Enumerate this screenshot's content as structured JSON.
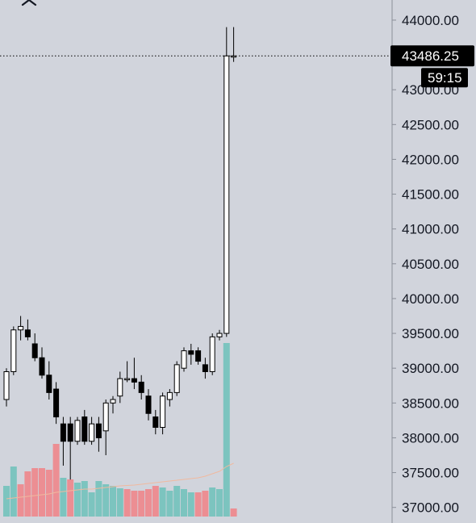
{
  "ui": {
    "close_icon": "close-icon",
    "background_color": "#d1d4dc",
    "axis_color": "#8b8f99",
    "text_color": "#131722",
    "up_color": "#ffffff",
    "down_color": "#000000",
    "wick_color": "#000000",
    "volume_up_color": "#7cc4bf",
    "volume_down_color": "#ec8e93",
    "volume_ma_color": "#f0b99f"
  },
  "price_badge": {
    "value": "43486.25",
    "countdown": "59:15",
    "color": "#000000"
  },
  "chart_data": {
    "type": "candlestick",
    "title": "",
    "xlabel": "",
    "ylabel": "",
    "ylim": [
      36950,
      44150
    ],
    "grid": false,
    "y_ticks": [
      {
        "value": 44000,
        "label": "44000.00"
      },
      {
        "value": 43500,
        "label": "43500.00"
      },
      {
        "value": 43000,
        "label": "43000.00"
      },
      {
        "value": 42500,
        "label": "42500.00"
      },
      {
        "value": 42000,
        "label": "42000.00"
      },
      {
        "value": 41500,
        "label": "41500.00"
      },
      {
        "value": 41000,
        "label": "41000.00"
      },
      {
        "value": 40500,
        "label": "40500.00"
      },
      {
        "value": 40000,
        "label": "40000.00"
      },
      {
        "value": 39500,
        "label": "39500.00"
      },
      {
        "value": 39000,
        "label": "39000.00"
      },
      {
        "value": 38500,
        "label": "38500.00"
      },
      {
        "value": 38000,
        "label": "38000.00"
      },
      {
        "value": 37500,
        "label": "37500.00"
      },
      {
        "value": 37000,
        "label": "37000.00"
      }
    ],
    "last_price": 43486.25,
    "candles": [
      {
        "o": 38550,
        "h": 39000,
        "l": 38450,
        "c": 38950
      },
      {
        "o": 38950,
        "h": 39600,
        "l": 38900,
        "c": 39550
      },
      {
        "o": 39550,
        "h": 39750,
        "l": 39400,
        "c": 39600
      },
      {
        "o": 39550,
        "h": 39700,
        "l": 39400,
        "c": 39450
      },
      {
        "o": 39350,
        "h": 39500,
        "l": 39100,
        "c": 39150
      },
      {
        "o": 39150,
        "h": 39300,
        "l": 38850,
        "c": 38900
      },
      {
        "o": 38900,
        "h": 39100,
        "l": 38550,
        "c": 38650
      },
      {
        "o": 38700,
        "h": 38800,
        "l": 38200,
        "c": 38300
      },
      {
        "o": 38200,
        "h": 38300,
        "l": 37600,
        "c": 37950
      },
      {
        "o": 38200,
        "h": 38300,
        "l": 37400,
        "c": 37950
      },
      {
        "o": 37950,
        "h": 38300,
        "l": 37900,
        "c": 38250
      },
      {
        "o": 38300,
        "h": 38400,
        "l": 37900,
        "c": 37950
      },
      {
        "o": 37950,
        "h": 38300,
        "l": 37900,
        "c": 38200
      },
      {
        "o": 38200,
        "h": 38300,
        "l": 37800,
        "c": 38000
      },
      {
        "o": 38100,
        "h": 38550,
        "l": 37750,
        "c": 38500
      },
      {
        "o": 38500,
        "h": 38600,
        "l": 38350,
        "c": 38550
      },
      {
        "o": 38600,
        "h": 38950,
        "l": 38500,
        "c": 38850
      },
      {
        "o": 38850,
        "h": 39100,
        "l": 38800,
        "c": 38850
      },
      {
        "o": 38850,
        "h": 39150,
        "l": 38700,
        "c": 38800
      },
      {
        "o": 38800,
        "h": 38900,
        "l": 38550,
        "c": 38650
      },
      {
        "o": 38600,
        "h": 38700,
        "l": 38250,
        "c": 38350
      },
      {
        "o": 38300,
        "h": 38400,
        "l": 38050,
        "c": 38150
      },
      {
        "o": 38150,
        "h": 38650,
        "l": 38050,
        "c": 38600
      },
      {
        "o": 38550,
        "h": 38700,
        "l": 38450,
        "c": 38650
      },
      {
        "o": 38650,
        "h": 39100,
        "l": 38600,
        "c": 39050
      },
      {
        "o": 39000,
        "h": 39300,
        "l": 38950,
        "c": 39250
      },
      {
        "o": 39250,
        "h": 39350,
        "l": 39050,
        "c": 39200
      },
      {
        "o": 39250,
        "h": 39300,
        "l": 39050,
        "c": 39100
      },
      {
        "o": 39050,
        "h": 39150,
        "l": 38850,
        "c": 38950
      },
      {
        "o": 38950,
        "h": 39500,
        "l": 38900,
        "c": 39450
      },
      {
        "o": 39450,
        "h": 39550,
        "l": 39400,
        "c": 39500
      },
      {
        "o": 39500,
        "h": 43900,
        "l": 39450,
        "c": 43486.25
      },
      {
        "o": 43486.25,
        "h": 43900,
        "l": 43400,
        "c": 43486.25
      }
    ],
    "volume": [
      {
        "v": 0.38,
        "up": true
      },
      {
        "v": 0.62,
        "up": true
      },
      {
        "v": 0.4,
        "up": false
      },
      {
        "v": 0.56,
        "up": false
      },
      {
        "v": 0.6,
        "up": false
      },
      {
        "v": 0.6,
        "up": false
      },
      {
        "v": 0.58,
        "up": false
      },
      {
        "v": 0.9,
        "up": false
      },
      {
        "v": 0.48,
        "up": true
      },
      {
        "v": 0.46,
        "up": false
      },
      {
        "v": 0.42,
        "up": true
      },
      {
        "v": 0.44,
        "up": true
      },
      {
        "v": 0.3,
        "up": true
      },
      {
        "v": 0.44,
        "up": true
      },
      {
        "v": 0.4,
        "up": true
      },
      {
        "v": 0.38,
        "up": true
      },
      {
        "v": 0.35,
        "up": true
      },
      {
        "v": 0.34,
        "up": false
      },
      {
        "v": 0.32,
        "up": false
      },
      {
        "v": 0.32,
        "up": false
      },
      {
        "v": 0.34,
        "up": false
      },
      {
        "v": 0.38,
        "up": false
      },
      {
        "v": 0.36,
        "up": true
      },
      {
        "v": 0.32,
        "up": true
      },
      {
        "v": 0.38,
        "up": true
      },
      {
        "v": 0.34,
        "up": true
      },
      {
        "v": 0.3,
        "up": true
      },
      {
        "v": 0.3,
        "up": false
      },
      {
        "v": 0.32,
        "up": false
      },
      {
        "v": 0.36,
        "up": true
      },
      {
        "v": 0.34,
        "up": true
      },
      {
        "v": 2.15,
        "up": true
      },
      {
        "v": 0.1,
        "up": false
      }
    ],
    "volume_ma": [
      0.22,
      0.23,
      0.24,
      0.25,
      0.26,
      0.27,
      0.28,
      0.3,
      0.31,
      0.32,
      0.33,
      0.34,
      0.34,
      0.35,
      0.36,
      0.37,
      0.38,
      0.385,
      0.39,
      0.4,
      0.41,
      0.42,
      0.43,
      0.44,
      0.45,
      0.46,
      0.47,
      0.48,
      0.5,
      0.53,
      0.56,
      0.62,
      0.66
    ]
  }
}
